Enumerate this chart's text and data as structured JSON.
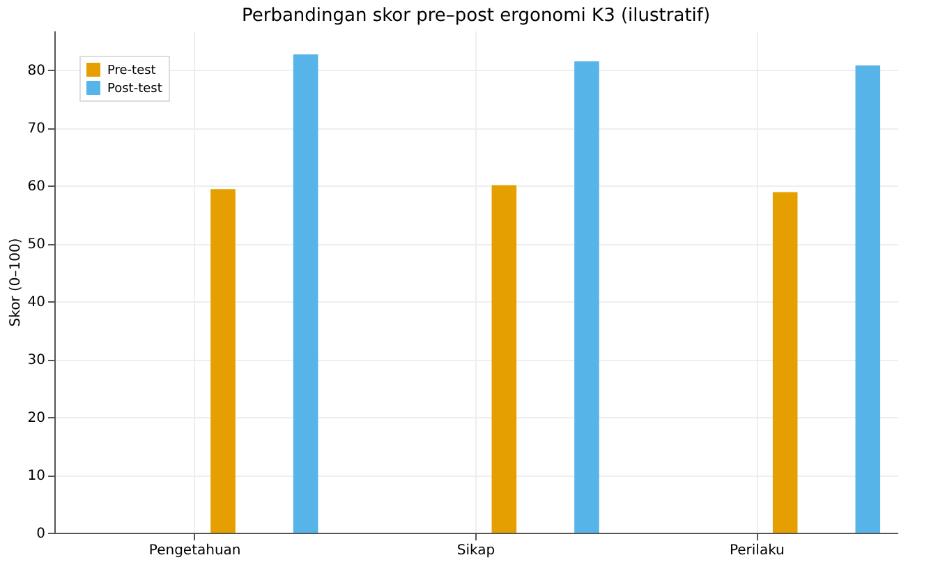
{
  "chart_data": {
    "type": "bar",
    "title": "Perbandingan skor pre–post ergonomi K3 (ilustratif)",
    "ylabel": "Skor (0–100)",
    "categories": [
      "Pengetahuan",
      "Sikap",
      "Perilaku"
    ],
    "series": [
      {
        "name": "Pre-test",
        "color": "#e69f00",
        "values": [
          59.4,
          60.1,
          58.9
        ]
      },
      {
        "name": "Post-test",
        "color": "#56b4e9",
        "values": [
          82.7,
          81.5,
          80.8
        ]
      }
    ],
    "ylim": [
      0,
      86.8
    ],
    "yticks": [
      0,
      10,
      20,
      30,
      40,
      50,
      60,
      70,
      80
    ],
    "grid": true,
    "legend": "top left"
  }
}
